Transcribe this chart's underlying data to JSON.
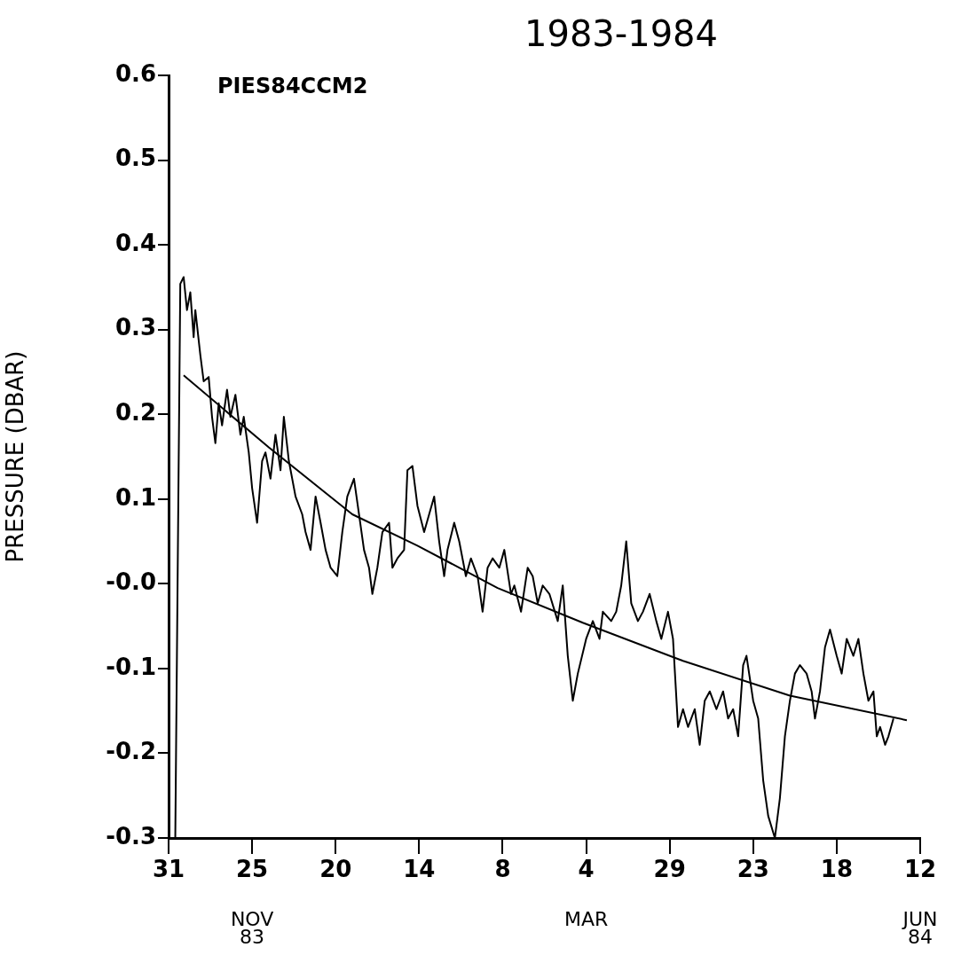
{
  "chart_data": {
    "type": "line",
    "title": "1983-1984",
    "ylabel": "PRESSURE (DBAR)",
    "annotations": [
      "PIES84CCM2",
      "NOV 83",
      "MAR",
      "JUN 84"
    ],
    "xlim": [
      "1983-10-31",
      "1984-06-12"
    ],
    "xticks": [
      {
        "value": "1983-10-31",
        "label": "31"
      },
      {
        "value": "1983-11-25",
        "label": "25"
      },
      {
        "value": "1983-12-20",
        "label": "20"
      },
      {
        "value": "1984-01-14",
        "label": "14"
      },
      {
        "value": "1984-02-08",
        "label": "8"
      },
      {
        "value": "1984-03-04",
        "label": "4"
      },
      {
        "value": "1984-03-29",
        "label": "29"
      },
      {
        "value": "1984-04-23",
        "label": "23"
      },
      {
        "value": "1984-05-18",
        "label": "18"
      },
      {
        "value": "1984-06-12",
        "label": "12"
      }
    ],
    "ylim": [
      -0.3,
      0.6
    ],
    "yticks": [
      0.6,
      0.5,
      0.4,
      0.3,
      0.2,
      0.1,
      {
        "value": 0,
        "label": "-0.0"
      },
      -0.1,
      -0.2,
      -0.3
    ],
    "grid": false,
    "legend": false,
    "marker": "none",
    "line_style": "solid",
    "series": [
      {
        "color": "#000000",
        "x": [
          "1983-11-02",
          "1983-11-03T12:00",
          "1983-11-04T12:00",
          "1983-11-05T12:00",
          "1983-11-06T12:00",
          "1983-11-07T12:00",
          "1983-11-08",
          "1983-11-09T12:00",
          "1983-11-10T12:00",
          "1983-11-12",
          "1983-11-13",
          "1983-11-14",
          "1983-11-15",
          "1983-11-16",
          "1983-11-17T12:00",
          "1983-11-18T12:00",
          "1983-11-20",
          "1983-11-21T12:00",
          "1983-11-22T12:00",
          "1983-11-24",
          "1983-11-25",
          "1983-11-26T12:00",
          "1983-11-28",
          "1983-11-29",
          "1983-11-30T12:00",
          "1983-12-02",
          "1983-12-03T12:00",
          "1983-12-04T12:00",
          "1983-12-06",
          "1983-12-08",
          "1983-12-10",
          "1983-12-11",
          "1983-12-12T12:00",
          "1983-12-14",
          "1983-12-15T12:00",
          "1983-12-17",
          "1983-12-18T12:00",
          "1983-12-20T12:00",
          "1983-12-22",
          "1983-12-23T12:00",
          "1983-12-25T12:00",
          "1983-12-27",
          "1983-12-28T12:00",
          "1983-12-30",
          "1983-12-31",
          "1984-01-01T12:00",
          "1984-01-03",
          "1984-01-05",
          "1984-01-06",
          "1984-01-07T12:00",
          "1984-01-09T12:00",
          "1984-01-10T12:00",
          "1984-01-12",
          "1984-01-13T12:00",
          "1984-01-15T12:00",
          "1984-01-17",
          "1984-01-18T12:00",
          "1984-01-20",
          "1984-01-21T12:00",
          "1984-01-22T12:00",
          "1984-01-24T12:00",
          "1984-01-26",
          "1984-01-28",
          "1984-01-29T12:00",
          "1984-01-31T12:00",
          "1984-02-02",
          "1984-02-03T12:00",
          "1984-02-05",
          "1984-02-07",
          "1984-02-08T12:00",
          "1984-02-10T12:00",
          "1984-02-11T12:00",
          "1984-02-13T12:00",
          "1984-02-15T12:00",
          "1984-02-17",
          "1984-02-18T12:00",
          "1984-02-20",
          "1984-02-22",
          "1984-02-24T12:00",
          "1984-02-26",
          "1984-02-27T12:00",
          "1984-02-29",
          "1984-03-01T12:00",
          "1984-03-04",
          "1984-03-06",
          "1984-03-08",
          "1984-03-09",
          "1984-03-11T12:00",
          "1984-03-13",
          "1984-03-14T12:00",
          "1984-03-16",
          "1984-03-17T12:00",
          "1984-03-19T12:00",
          "1984-03-21",
          "1984-03-23",
          "1984-03-25",
          "1984-03-26T12:00",
          "1984-03-28T12:00",
          "1984-03-30",
          "1984-03-31T12:00",
          "1984-04-02",
          "1984-04-03T12:00",
          "1984-04-05T12:00",
          "1984-04-07",
          "1984-04-08T12:00",
          "1984-04-10",
          "1984-04-12",
          "1984-04-14",
          "1984-04-15T12:00",
          "1984-04-17",
          "1984-04-18T12:00",
          "1984-04-20",
          "1984-04-21",
          "1984-04-23",
          "1984-04-24T12:00",
          "1984-04-26",
          "1984-04-27T12:00",
          "1984-04-29T12:00",
          "1984-05-01",
          "1984-05-02T12:00",
          "1984-05-04",
          "1984-05-05T12:00",
          "1984-05-07",
          "1984-05-09",
          "1984-05-10T12:00",
          "1984-05-11T12:00",
          "1984-05-13",
          "1984-05-14T12:00",
          "1984-05-16",
          "1984-05-18",
          "1984-05-19T12:00",
          "1984-05-21",
          "1984-05-23",
          "1984-05-24T12:00",
          "1984-05-26",
          "1984-05-27T12:00",
          "1984-05-29",
          "1984-05-30",
          "1984-05-31",
          "1984-06-01T12:00",
          "1984-06-02T12:00",
          "1984-06-04"
        ],
        "values": [
          -0.3,
          0.354,
          0.362,
          0.323,
          0.344,
          0.291,
          0.323,
          0.27,
          0.239,
          0.244,
          0.197,
          0.166,
          0.213,
          0.187,
          0.229,
          0.197,
          0.223,
          0.176,
          0.197,
          0.155,
          0.113,
          0.072,
          0.145,
          0.155,
          0.124,
          0.176,
          0.134,
          0.197,
          0.145,
          0.103,
          0.082,
          0.061,
          0.04,
          0.103,
          0.072,
          0.04,
          0.019,
          0.009,
          0.061,
          0.103,
          0.124,
          0.082,
          0.04,
          0.019,
          -0.012,
          0.019,
          0.061,
          0.072,
          0.019,
          0.03,
          0.04,
          0.134,
          0.139,
          0.092,
          0.061,
          0.082,
          0.103,
          0.05,
          0.009,
          0.04,
          0.072,
          0.05,
          0.009,
          0.03,
          0.009,
          -0.033,
          0.019,
          0.03,
          0.019,
          0.04,
          -0.012,
          -0.002,
          -0.033,
          0.019,
          0.009,
          -0.023,
          -0.002,
          -0.012,
          -0.044,
          -0.002,
          -0.085,
          -0.138,
          -0.106,
          -0.065,
          -0.044,
          -0.065,
          -0.033,
          -0.044,
          -0.033,
          -0.002,
          0.05,
          -0.023,
          -0.044,
          -0.033,
          -0.012,
          -0.044,
          -0.065,
          -0.033,
          -0.065,
          -0.169,
          -0.148,
          -0.169,
          -0.148,
          -0.19,
          -0.138,
          -0.127,
          -0.148,
          -0.127,
          -0.159,
          -0.148,
          -0.18,
          -0.096,
          -0.085,
          -0.138,
          -0.159,
          -0.232,
          -0.274,
          -0.3,
          -0.253,
          -0.18,
          -0.138,
          -0.106,
          -0.096,
          -0.106,
          -0.127,
          -0.159,
          -0.127,
          -0.075,
          -0.054,
          -0.085,
          -0.106,
          -0.065,
          -0.085,
          -0.065,
          -0.106,
          -0.138,
          -0.127,
          -0.18,
          -0.169,
          -0.19,
          -0.18,
          -0.159
        ]
      },
      {
        "color": "#000000",
        "x": [
          "1983-11-04T12:00",
          "1983-11-30",
          "1983-12-25",
          "1984-01-13T12:00",
          "1984-02-06T12:00",
          "1984-03-03",
          "1984-04-02",
          "1984-05-04",
          "1984-06-08"
        ],
        "values": [
          0.246,
          0.161,
          0.082,
          0.045,
          -0.005,
          -0.046,
          -0.091,
          -0.132,
          -0.161
        ]
      }
    ]
  }
}
